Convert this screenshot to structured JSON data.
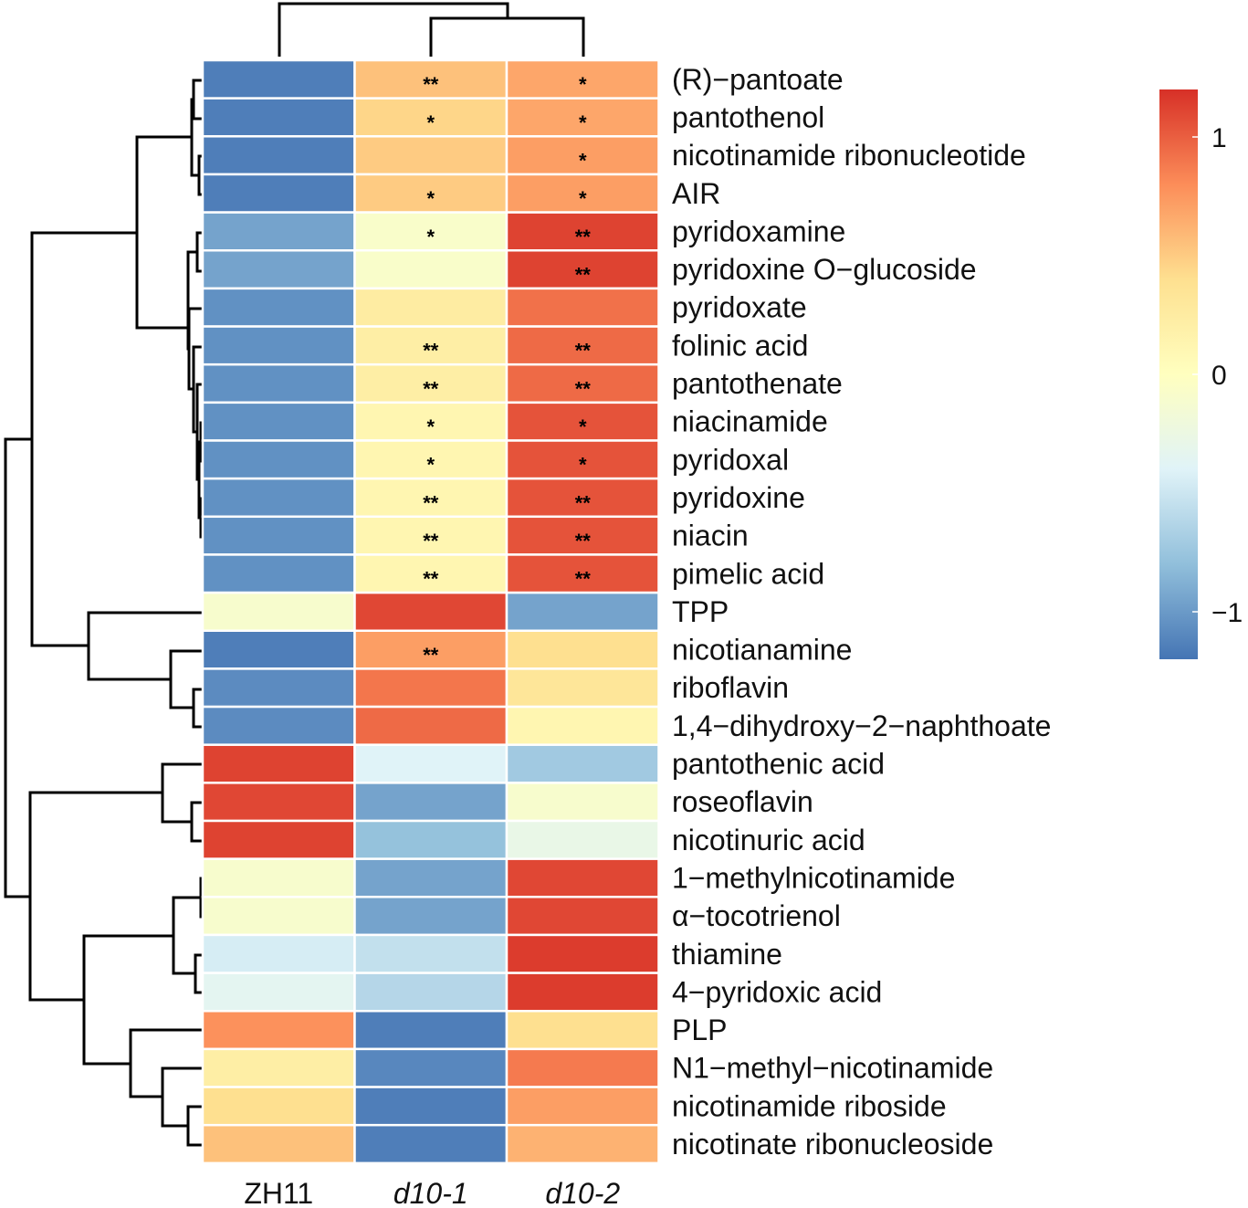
{
  "chart_data": {
    "type": "heatmap",
    "title": "",
    "columns": [
      "ZH11",
      "d10-1",
      "d10-2"
    ],
    "column_italic": [
      false,
      true,
      true
    ],
    "rows": [
      "(R)−pantoate",
      "pantothenol",
      "nicotinamide ribonucleotide",
      "AIR",
      "pyridoxamine",
      "pyridoxine O−glucoside",
      "pyridoxate",
      "folinic acid",
      "pantothenate",
      "niacinamide",
      "pyridoxal",
      "pyridoxine",
      "niacin",
      "pimelic acid",
      "TPP",
      "nicotianamine",
      "riboflavin",
      "1,4−dihydroxy−2−naphthoate",
      "pantothenic acid",
      "roseoflavin",
      "nicotinuric acid",
      "1−methylnicotinamide",
      "α−tocotrienol",
      "thiamine",
      "4−pyridoxic acid",
      "PLP",
      "N1−methyl−nicotinamide",
      "nicotinamide riboside",
      "nicotinate ribonucleoside"
    ],
    "values": [
      [
        -1.15,
        0.55,
        0.68
      ],
      [
        -1.15,
        0.45,
        0.68
      ],
      [
        -1.15,
        0.5,
        0.72
      ],
      [
        -1.15,
        0.5,
        0.72
      ],
      [
        -0.95,
        -0.08,
        1.12
      ],
      [
        -0.95,
        -0.08,
        1.12
      ],
      [
        -1.05,
        0.25,
        0.92
      ],
      [
        -1.05,
        0.22,
        0.95
      ],
      [
        -1.05,
        0.22,
        0.95
      ],
      [
        -1.05,
        0.12,
        1.05
      ],
      [
        -1.05,
        0.12,
        1.05
      ],
      [
        -1.05,
        0.12,
        1.05
      ],
      [
        -1.05,
        0.12,
        1.05
      ],
      [
        -1.05,
        0.12,
        1.05
      ],
      [
        -0.1,
        1.1,
        -0.95
      ],
      [
        -1.15,
        0.72,
        0.4
      ],
      [
        -1.08,
        0.9,
        0.32
      ],
      [
        -1.08,
        0.95,
        0.12
      ],
      [
        1.12,
        -0.4,
        -0.72
      ],
      [
        1.1,
        -0.95,
        -0.1
      ],
      [
        1.12,
        -0.78,
        -0.28
      ],
      [
        -0.1,
        -0.95,
        1.1
      ],
      [
        -0.1,
        -0.95,
        1.1
      ],
      [
        -0.45,
        -0.55,
        1.15
      ],
      [
        -0.35,
        -0.62,
        1.15
      ],
      [
        0.78,
        -1.15,
        0.4
      ],
      [
        0.22,
        -1.1,
        0.88
      ],
      [
        0.4,
        -1.15,
        0.72
      ],
      [
        0.55,
        -1.15,
        0.62
      ]
    ],
    "stars": [
      [
        "",
        "**",
        "*"
      ],
      [
        "",
        "*",
        "*"
      ],
      [
        "",
        "",
        "*"
      ],
      [
        "",
        "*",
        "*"
      ],
      [
        "",
        "*",
        "**"
      ],
      [
        "",
        "",
        "**"
      ],
      [
        "",
        "",
        ""
      ],
      [
        "",
        "**",
        "**"
      ],
      [
        "",
        "**",
        "**"
      ],
      [
        "",
        "*",
        "*"
      ],
      [
        "",
        "*",
        "*"
      ],
      [
        "",
        "**",
        "**"
      ],
      [
        "",
        "**",
        "**"
      ],
      [
        "",
        "**",
        "**"
      ],
      [
        "",
        "",
        ""
      ],
      [
        "",
        "**",
        ""
      ],
      [
        "",
        "",
        ""
      ],
      [
        "",
        "",
        ""
      ],
      [
        "",
        "",
        ""
      ],
      [
        "",
        "",
        ""
      ],
      [
        "",
        "",
        ""
      ],
      [
        "",
        "",
        ""
      ],
      [
        "",
        "",
        ""
      ],
      [
        "",
        "",
        ""
      ],
      [
        "",
        "",
        ""
      ],
      [
        "",
        "",
        ""
      ],
      [
        "",
        "",
        ""
      ],
      [
        "",
        "",
        ""
      ],
      [
        "",
        "",
        ""
      ]
    ],
    "color_scale": {
      "min": -1.2,
      "max": 1.2,
      "colors": [
        "#4575b4",
        "#91bfdb",
        "#e0f3f8",
        "#ffffbf",
        "#fee090",
        "#fc8d59",
        "#d73027"
      ]
    },
    "legend": {
      "ticks": [
        1,
        0,
        -1
      ],
      "tick_labels": [
        "1",
        "0",
        "−1"
      ],
      "position": "top-right"
    }
  }
}
